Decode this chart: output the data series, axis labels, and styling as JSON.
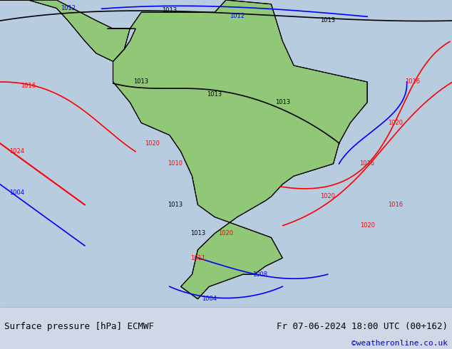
{
  "title_left": "Surface pressure [hPa] ECMWF",
  "title_right": "Fr 07-06-2024 18:00 UTC (00+162)",
  "credit": "©weatheronline.co.uk",
  "credit_color": "#0000cc",
  "bg_color": "#d0d8e8",
  "map_bg": "#d0d8e8",
  "bottom_bar_color": "#e8e8e8",
  "title_fontsize": 9,
  "credit_fontsize": 8,
  "figsize": [
    6.34,
    4.9
  ],
  "dpi": 100
}
